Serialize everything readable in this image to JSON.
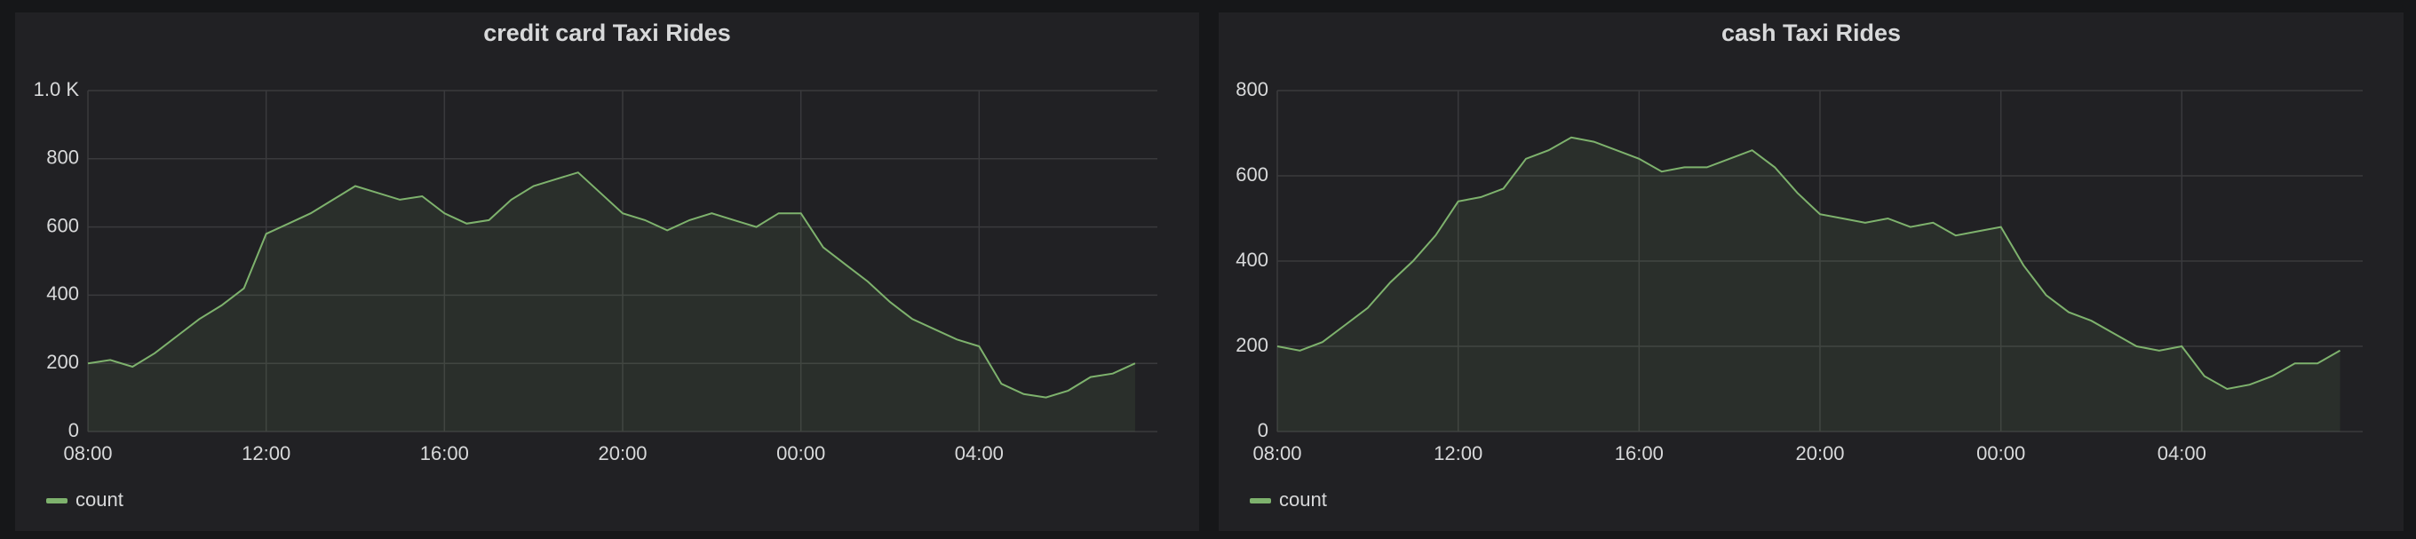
{
  "chart_data": [
    {
      "type": "line",
      "title": "credit card Taxi Rides",
      "x": [
        "08:00",
        "08:30",
        "09:00",
        "09:30",
        "10:00",
        "10:30",
        "11:00",
        "11:30",
        "12:00",
        "12:30",
        "13:00",
        "13:30",
        "14:00",
        "14:30",
        "15:00",
        "15:30",
        "16:00",
        "16:30",
        "17:00",
        "17:30",
        "18:00",
        "18:30",
        "19:00",
        "19:30",
        "20:00",
        "20:30",
        "21:00",
        "21:30",
        "22:00",
        "22:30",
        "23:00",
        "23:30",
        "00:00",
        "00:30",
        "01:00",
        "01:30",
        "02:00",
        "02:30",
        "03:00",
        "03:30",
        "04:00",
        "04:30",
        "05:00",
        "05:30",
        "06:00",
        "06:30",
        "07:00",
        "07:30"
      ],
      "series": [
        {
          "name": "count",
          "color": "#7eb26d",
          "values": [
            200,
            210,
            190,
            230,
            280,
            330,
            370,
            420,
            580,
            610,
            640,
            680,
            720,
            700,
            680,
            690,
            640,
            610,
            620,
            680,
            720,
            740,
            760,
            700,
            640,
            620,
            590,
            620,
            640,
            620,
            600,
            640,
            640,
            540,
            490,
            440,
            380,
            330,
            300,
            270,
            250,
            140,
            110,
            100,
            120,
            160,
            170,
            200
          ]
        }
      ],
      "ylim": [
        0,
        1000
      ],
      "yticks": [
        0,
        200,
        400,
        600,
        800,
        {
          "value": 1000,
          "label": "1.0 K"
        }
      ],
      "xticks": [
        "08:00",
        "12:00",
        "16:00",
        "20:00",
        "00:00",
        "04:00"
      ],
      "grid": true
    },
    {
      "type": "line",
      "title": "cash Taxi Rides",
      "x": [
        "08:00",
        "08:30",
        "09:00",
        "09:30",
        "10:00",
        "10:30",
        "11:00",
        "11:30",
        "12:00",
        "12:30",
        "13:00",
        "13:30",
        "14:00",
        "14:30",
        "15:00",
        "15:30",
        "16:00",
        "16:30",
        "17:00",
        "17:30",
        "18:00",
        "18:30",
        "19:00",
        "19:30",
        "20:00",
        "20:30",
        "21:00",
        "21:30",
        "22:00",
        "22:30",
        "23:00",
        "23:30",
        "00:00",
        "00:30",
        "01:00",
        "01:30",
        "02:00",
        "02:30",
        "03:00",
        "03:30",
        "04:00",
        "04:30",
        "05:00",
        "05:30",
        "06:00",
        "06:30",
        "07:00",
        "07:30"
      ],
      "series": [
        {
          "name": "count",
          "color": "#7eb26d",
          "values": [
            200,
            190,
            210,
            250,
            290,
            350,
            400,
            460,
            540,
            550,
            570,
            640,
            660,
            690,
            680,
            660,
            640,
            610,
            620,
            620,
            640,
            660,
            620,
            560,
            510,
            500,
            490,
            500,
            480,
            490,
            460,
            470,
            480,
            390,
            320,
            280,
            260,
            230,
            200,
            190,
            200,
            130,
            100,
            110,
            130,
            160,
            160,
            190
          ]
        }
      ],
      "ylim": [
        0,
        800
      ],
      "yticks": [
        0,
        200,
        400,
        600,
        800
      ],
      "xticks": [
        "08:00",
        "12:00",
        "16:00",
        "20:00",
        "00:00",
        "04:00"
      ],
      "grid": true
    }
  ]
}
